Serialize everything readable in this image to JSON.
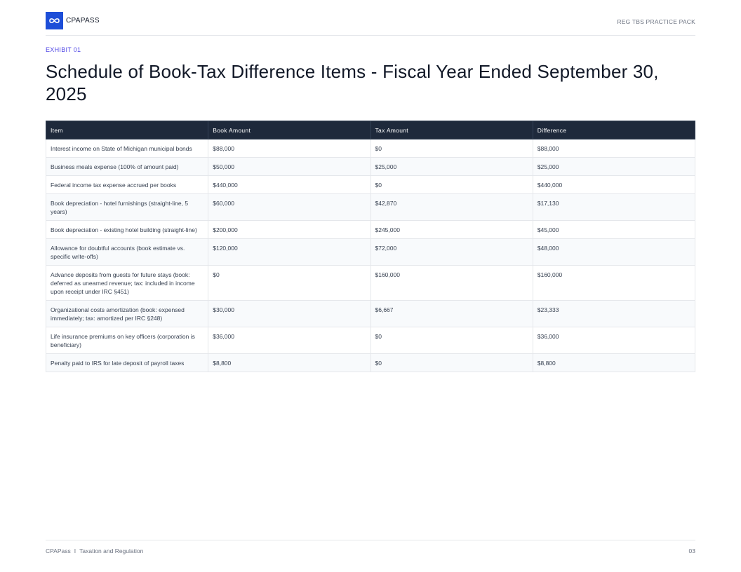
{
  "header": {
    "brand": "CPAPASS",
    "pack": "REG TBS PRACTICE PACK"
  },
  "exhibit": "EXHIBIT 01",
  "title": "Schedule of Book-Tax Difference Items - Fiscal Year Ended September 30, 2025",
  "table": {
    "columns": [
      "Item",
      "Book Amount",
      "Tax Amount",
      "Difference"
    ],
    "rows": [
      [
        "Interest income on State of Michigan municipal bonds",
        "$88,000",
        "$0",
        "$88,000"
      ],
      [
        "Business meals expense (100% of amount paid)",
        "$50,000",
        "$25,000",
        "$25,000"
      ],
      [
        "Federal income tax expense accrued per books",
        "$440,000",
        "$0",
        "$440,000"
      ],
      [
        "Book depreciation - hotel furnishings (straight-line, 5 years)",
        "$60,000",
        "$42,870",
        "$17,130"
      ],
      [
        "Book depreciation - existing hotel building (straight-line)",
        "$200,000",
        "$245,000",
        "$45,000"
      ],
      [
        "Allowance for doubtful accounts (book estimate vs. specific write-offs)",
        "$120,000",
        "$72,000",
        "$48,000"
      ],
      [
        "Advance deposits from guests for future stays (book: deferred as unearned revenue; tax: included in income upon receipt under IRC §451)",
        "$0",
        "$160,000",
        "$160,000"
      ],
      [
        "Organizational costs amortization (book: expensed immediately; tax: amortized per IRC §248)",
        "$30,000",
        "$6,667",
        "$23,333"
      ],
      [
        "Life insurance premiums on key officers (corporation is beneficiary)",
        "$36,000",
        "$0",
        "$36,000"
      ],
      [
        "Penalty paid to IRS for late deposit of payroll taxes",
        "$8,800",
        "$0",
        "$8,800"
      ]
    ]
  },
  "footer": {
    "brand": "CPAPass",
    "separator": "I",
    "section": "Taxation and Regulation",
    "page": "03"
  }
}
